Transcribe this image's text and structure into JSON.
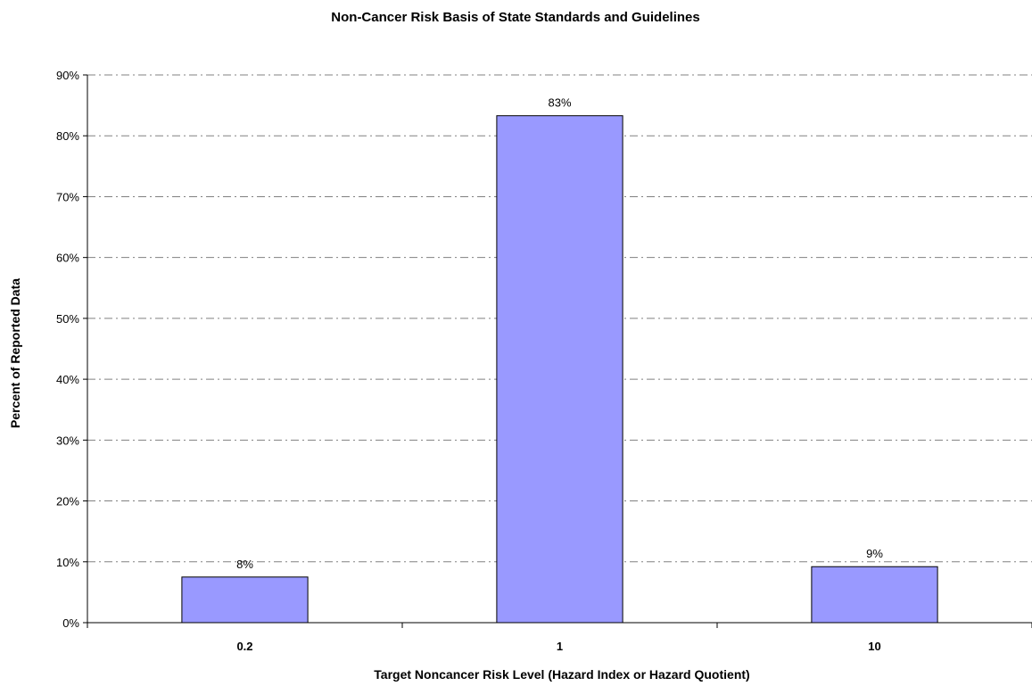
{
  "chart_data": {
    "type": "bar",
    "title": "Non-Cancer Risk Basis of State Standards and Guidelines",
    "xlabel": "Target Noncancer Risk Level (Hazard Index or Hazard Quotient)",
    "ylabel": "Percent of Reported Data",
    "categories": [
      "0.2",
      "1",
      "10"
    ],
    "values": [
      7.5,
      83.3,
      9.2
    ],
    "data_labels": [
      "8%",
      "83%",
      "9%"
    ],
    "ylim": [
      0,
      90
    ],
    "yticks": [
      0,
      10,
      20,
      30,
      40,
      50,
      60,
      70,
      80,
      90
    ],
    "ytick_labels": [
      "0%",
      "10%",
      "20%",
      "30%",
      "40%",
      "50%",
      "60%",
      "70%",
      "80%",
      "90%"
    ],
    "grid": true,
    "legend": "none",
    "colors": {
      "bar_fill": "#9999ff",
      "bar_stroke": "#000000",
      "grid": "#808080"
    }
  }
}
